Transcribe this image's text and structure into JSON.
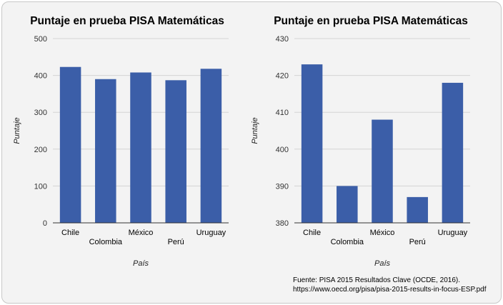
{
  "chart_data": [
    {
      "type": "bar",
      "title": "Puntaje en prueba PISA Matemáticas",
      "xlabel": "País",
      "ylabel": "Puntaje",
      "categories": [
        "Chile",
        "Colombia",
        "México",
        "Perú",
        "Uruguay"
      ],
      "values": [
        423,
        390,
        408,
        387,
        418
      ],
      "ylim": [
        0,
        500
      ],
      "yticks": [
        0,
        100,
        200,
        300,
        400,
        500
      ],
      "grid": true,
      "legend": "none",
      "bar_color": "#3b5ea8"
    },
    {
      "type": "bar",
      "title": "Puntaje en prueba PISA Matemáticas",
      "xlabel": "País",
      "ylabel": "Puntaje",
      "categories": [
        "Chile",
        "Colombia",
        "México",
        "Perú",
        "Uruguay"
      ],
      "values": [
        423,
        390,
        408,
        387,
        418
      ],
      "ylim": [
        380,
        430
      ],
      "yticks": [
        380,
        390,
        400,
        410,
        420,
        430
      ],
      "grid": true,
      "legend": "none",
      "bar_color": "#3b5ea8"
    }
  ],
  "source": {
    "line1": "Fuente: PISA 2015 Resultados Clave (OCDE, 2016).",
    "line2": "https://www.oecd.org/pisa/pisa-2015-results-in-focus-ESP.pdf"
  }
}
